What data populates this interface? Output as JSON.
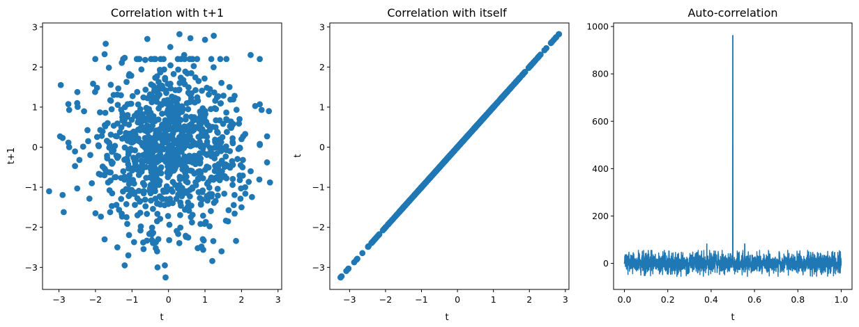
{
  "chart_data": [
    {
      "type": "scatter",
      "title": "Correlation with t+1",
      "xlabel": "t",
      "ylabel": "t+1",
      "xlim": [
        -3.45,
        3.1
      ],
      "ylim": [
        -3.55,
        3.1
      ],
      "xticks": [
        -3,
        -2,
        -1,
        0,
        1,
        2,
        3
      ],
      "yticks": [
        -3,
        -2,
        -1,
        0,
        1,
        2,
        3
      ],
      "xtick_labels": [
        "−3",
        "−2",
        "−1",
        "0",
        "1",
        "2",
        "3"
      ],
      "ytick_labels": [
        "−3",
        "−2",
        "−1",
        "0",
        "1",
        "2",
        "3"
      ],
      "grid": false,
      "color": "#1f77b4",
      "n_points": 1000,
      "distribution": "independent standard normal (t, t+1)",
      "points": [
        [
          -3.27,
          -1.1
        ],
        [
          -2.95,
          1.55
        ],
        [
          -2.87,
          -1.62
        ],
        [
          -2.97,
          0.27
        ],
        [
          -2.9,
          0.23
        ],
        [
          -2.72,
          0.93
        ],
        [
          -2.5,
          1.1
        ],
        [
          -2.72,
          0.0
        ],
        [
          -2.56,
          -0.47
        ],
        [
          -2.5,
          -1.03
        ],
        [
          -2.2,
          0.15
        ],
        [
          -2.1,
          -0.9
        ],
        [
          -2.0,
          -1.65
        ],
        [
          -1.75,
          -2.3
        ],
        [
          -1.72,
          2.58
        ],
        [
          -1.75,
          2.32
        ],
        [
          -1.4,
          -2.5
        ],
        [
          -1.2,
          2.23
        ],
        [
          -1.2,
          -2.95
        ],
        [
          -1.1,
          -2.7
        ],
        [
          -0.58,
          2.7
        ],
        [
          -0.3,
          -3.0
        ],
        [
          -0.1,
          -2.95
        ],
        [
          -0.08,
          -3.25
        ],
        [
          0.05,
          2.5
        ],
        [
          0.3,
          2.82
        ],
        [
          0.43,
          2.3
        ],
        [
          0.6,
          2.72
        ],
        [
          1.0,
          2.68
        ],
        [
          1.24,
          2.78
        ],
        [
          1.2,
          -2.84
        ],
        [
          0.95,
          -2.56
        ],
        [
          0.8,
          -2.52
        ],
        [
          1.63,
          -1.85
        ],
        [
          1.85,
          -2.34
        ],
        [
          2.25,
          2.3
        ],
        [
          2.25,
          -0.6
        ],
        [
          2.0,
          0.2
        ],
        [
          2.55,
          0.93
        ],
        [
          2.75,
          0.9
        ],
        [
          2.7,
          0.27
        ],
        [
          2.7,
          -0.38
        ],
        [
          2.78,
          -0.88
        ],
        [
          2.0,
          -1.5
        ],
        [
          2.1,
          -1.0
        ]
      ],
      "sample_seed": 7
    },
    {
      "type": "scatter",
      "title": "Correlation with itself",
      "xlabel": "t",
      "ylabel": "t",
      "xlim": [
        -3.55,
        3.1
      ],
      "ylim": [
        -3.55,
        3.1
      ],
      "xticks": [
        -3,
        -2,
        -1,
        0,
        1,
        2,
        3
      ],
      "yticks": [
        -3,
        -2,
        -1,
        0,
        1,
        2,
        3
      ],
      "xtick_labels": [
        "−3",
        "−2",
        "−1",
        "0",
        "1",
        "2",
        "3"
      ],
      "ytick_labels": [
        "−3",
        "−2",
        "−1",
        "0",
        "1",
        "2",
        "3"
      ],
      "grid": false,
      "color": "#1f77b4",
      "n_points": 1000,
      "relation": "y = x",
      "x_range": [
        -3.25,
        2.82
      ]
    },
    {
      "type": "line",
      "title": "Auto-correlation",
      "xlabel": "t",
      "ylabel": "",
      "xlim": [
        -0.05,
        1.05
      ],
      "ylim": [
        -110,
        1015
      ],
      "xticks": [
        0.0,
        0.2,
        0.4,
        0.6,
        0.8,
        1.0
      ],
      "yticks": [
        0,
        200,
        400,
        600,
        800,
        1000
      ],
      "xtick_labels": [
        "0.0",
        "0.2",
        "0.4",
        "0.6",
        "0.8",
        "1.0"
      ],
      "ytick_labels": [
        "0",
        "200",
        "400",
        "600",
        "800",
        "1000"
      ],
      "grid": false,
      "color": "#1f77b4",
      "n_points": 1999,
      "peak": {
        "x": 0.5,
        "y": 962
      },
      "noise_range": [
        -55,
        55
      ],
      "secondary_peaks": [
        {
          "x": 0.38,
          "y": 82
        },
        {
          "x": 0.555,
          "y": 82
        }
      ]
    }
  ]
}
